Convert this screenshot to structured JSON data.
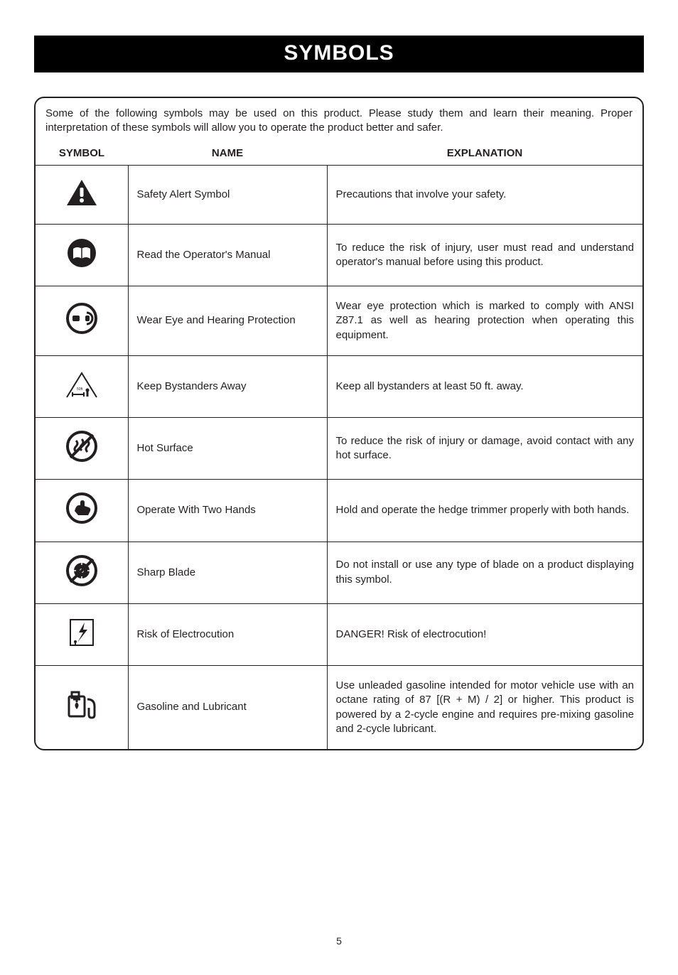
{
  "banner": "SYMBOLS",
  "intro": "Some of the following symbols may be used on this product. Please study them and learn their meaning. Proper interpretation of these symbols will allow you to operate the product better and safer.",
  "headers": {
    "symbol": "SYMBOL",
    "name": "NAME",
    "explanation": "EXPLANATION"
  },
  "rows": [
    {
      "icon": "safety-alert",
      "name": "Safety Alert Symbol",
      "explanation": "Precautions that involve your safety."
    },
    {
      "icon": "read-manual",
      "name": "Read the Operator's Manual",
      "explanation": "To reduce the risk of injury, user must read and understand operator's manual before using this product."
    },
    {
      "icon": "eye-hearing",
      "name": "Wear Eye and Hearing Protection",
      "explanation": "Wear eye protection which is marked to comply with ANSI Z87.1 as well as hearing protection when operating this equipment."
    },
    {
      "icon": "bystanders",
      "name": "Keep Bystanders Away",
      "explanation": "Keep all bystanders at least 50 ft. away."
    },
    {
      "icon": "hot-surface",
      "name": "Hot Surface",
      "explanation": "To reduce the risk of injury or damage, avoid contact with any hot surface."
    },
    {
      "icon": "two-hands",
      "name": "Operate With Two Hands",
      "explanation": "Hold and operate the hedge trimmer properly with both hands."
    },
    {
      "icon": "sharp-blade",
      "name": "Sharp Blade",
      "explanation": "Do not install or use any type of blade on a product displaying this symbol."
    },
    {
      "icon": "electrocution",
      "name": "Risk of Electrocution",
      "explanation": "DANGER! Risk of electrocution!"
    },
    {
      "icon": "gasoline",
      "name": "Gasoline and Lubricant",
      "explanation": "Use unleaded gasoline intended for motor vehicle use with an octane rating of 87 [(R + M) / 2] or higher. This product is powered by a 2-cycle engine and requires pre-mixing gasoline and 2-cycle lubricant."
    }
  ],
  "page_number": "5",
  "colors": {
    "text": "#231f20",
    "banner_bg": "#000000",
    "banner_text": "#ffffff",
    "border": "#231f20"
  },
  "fonts": {
    "body_size_pt": 11,
    "banner_size_pt": 22
  }
}
